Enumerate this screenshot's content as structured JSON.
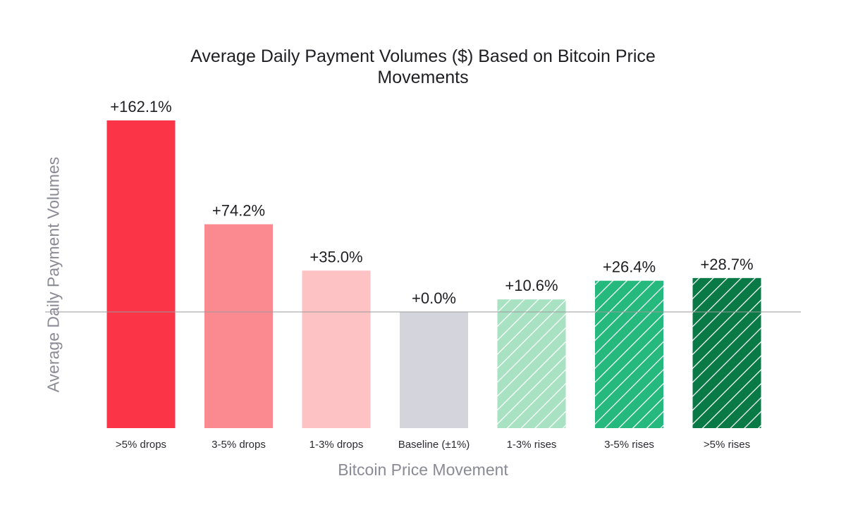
{
  "chart_data": {
    "type": "bar",
    "title_lines": [
      "Average Daily Payment Volumes ($) Based on Bitcoin Price",
      "Movements"
    ],
    "xlabel": "Bitcoin Price Movement",
    "ylabel": "Average Daily Payment Volumes",
    "categories": [
      ">5% drops",
      "3-5% drops",
      "1-3% drops",
      "Baseline (±1%)",
      "1-3% rises",
      "3-5% rises",
      ">5% rises"
    ],
    "values": [
      162.1,
      74.2,
      35.0,
      0.0,
      10.6,
      26.4,
      28.7
    ],
    "value_labels": [
      "+162.1%",
      "+74.2%",
      "+35.0%",
      "+0.0%",
      "+10.6%",
      "+26.4%",
      "+28.7%"
    ],
    "colors": [
      "#fb3448",
      "#fb8a90",
      "#fdc2c4",
      "#d4d5dc",
      "#a8e2c2",
      "#26b97d",
      "#097a45"
    ],
    "hatched": [
      false,
      false,
      false,
      false,
      true,
      true,
      true
    ],
    "baseline_value": 0.0,
    "grid": false,
    "reference_line": true
  }
}
